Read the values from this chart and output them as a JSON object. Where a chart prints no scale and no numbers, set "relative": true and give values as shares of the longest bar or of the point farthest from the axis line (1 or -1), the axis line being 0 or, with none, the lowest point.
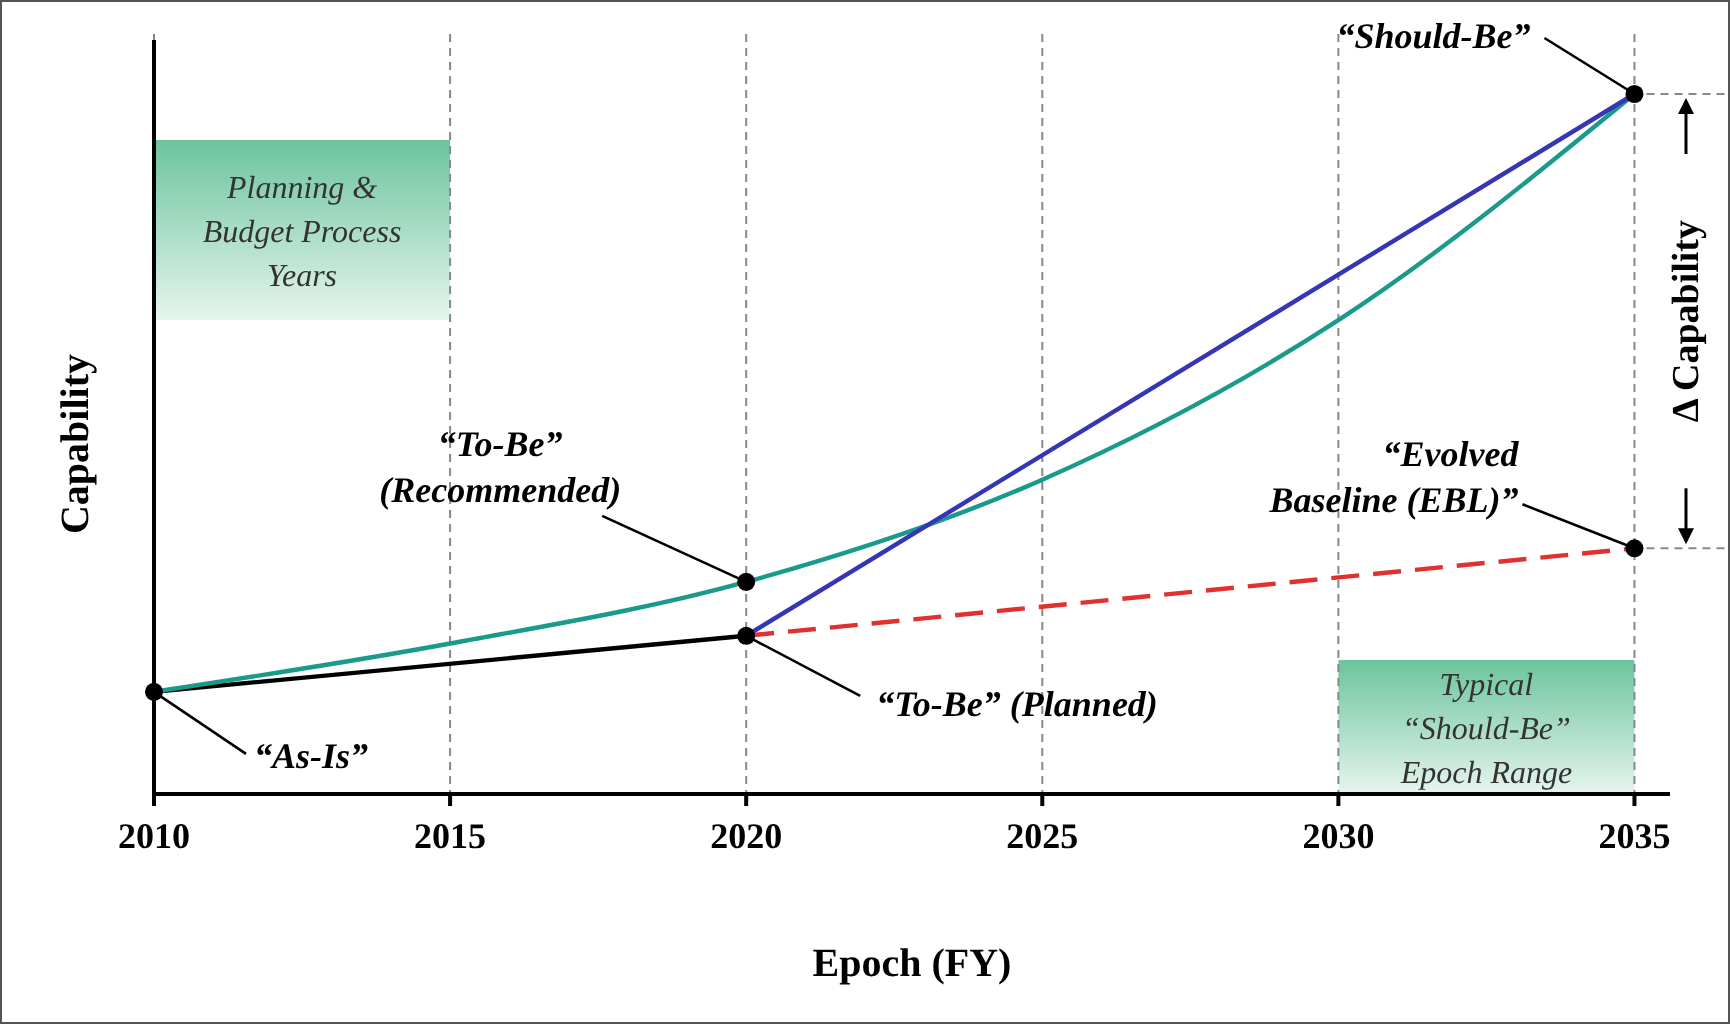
{
  "chart_data": {
    "type": "line",
    "xlabel": "Epoch (FY)",
    "ylabel": "Capability",
    "relative": true,
    "xlim": [
      2010,
      2035.6
    ],
    "xticks": [
      2010,
      2015,
      2020,
      2025,
      2030,
      2035
    ],
    "grid": "x",
    "marker": "none",
    "series": [
      {
        "color": "#000000",
        "x": [
          2010,
          2020
        ],
        "values": [
          0.146,
          0.226
        ]
      },
      {
        "color": "#1a9a8a",
        "x": [
          2010,
          2015,
          2020,
          2025,
          2030,
          2035
        ],
        "values": [
          0.146,
          0.215,
          0.303,
          0.449,
          0.677,
          1
        ]
      },
      {
        "color": "#3535b5",
        "x": [
          2020,
          2035
        ],
        "values": [
          0.226,
          1
        ]
      },
      {
        "color": "#e03030",
        "x": [
          2020,
          2035
        ],
        "values": [
          0.226,
          0.351
        ],
        "line_style": "dashed"
      },
      {
        "type": "scatter",
        "marker": "circle",
        "color": "#000000",
        "x": [
          2010,
          2020,
          2020,
          2035,
          2035
        ],
        "values": [
          0.146,
          0.226,
          0.303,
          1,
          0.351
        ]
      }
    ],
    "bands": [
      {
        "axis": "x",
        "from": 2010,
        "to": 2015,
        "label": "Planning & Budget Process Years",
        "color": "#6cc49e"
      },
      {
        "axis": "x",
        "from": 2030,
        "to": 2035,
        "label": "Typical “Should-Be” Epoch Range",
        "color": "#6cc49e"
      }
    ],
    "annotations": [
      {
        "text": "“As-Is”",
        "x": 2010,
        "y": 0.146
      },
      {
        "text": "“To-Be” (Recommended)",
        "x": 2020,
        "y": 0.303
      },
      {
        "text": "“To-Be” (Planned)",
        "x": 2020,
        "y": 0.226
      },
      {
        "text": "“Should-Be”",
        "x": 2035,
        "y": 1
      },
      {
        "text": "“Evolved Baseline (EBL)”",
        "x": 2035,
        "y": 0.351
      },
      "Δ Capability"
    ]
  }
}
